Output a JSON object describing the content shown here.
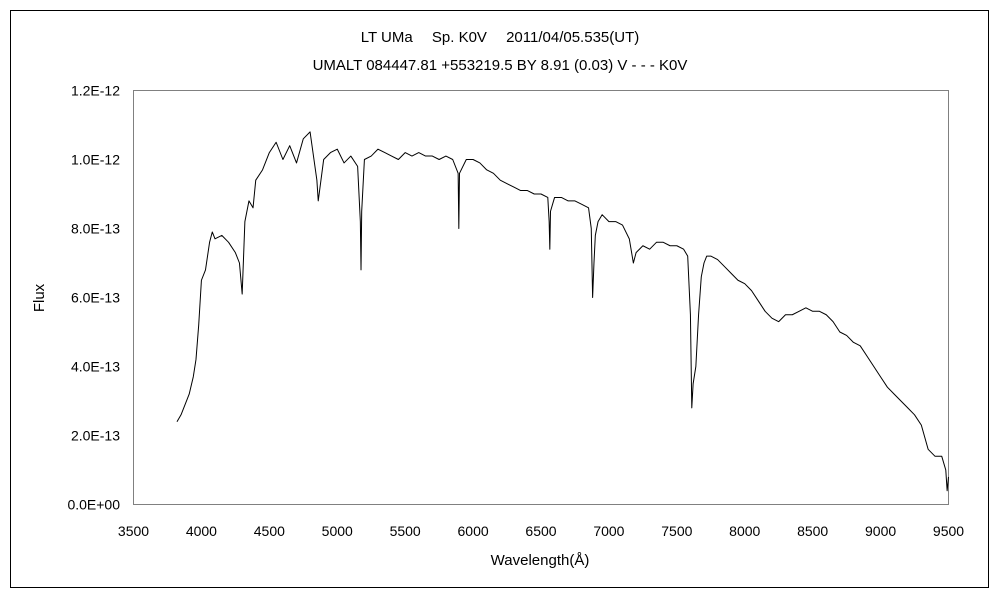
{
  "chart_data": {
    "type": "line",
    "title": "LT UMa　 Sp. K0V　 2011/04/05.535(UT)",
    "subtitle": "UMALT 084447.81 +553219.5 BY 8.91 (0.03) V - - - K0V",
    "xlabel": "Wavelength(Å)",
    "ylabel": "Flux",
    "xlim": [
      3500,
      9500
    ],
    "ylim": [
      0,
      1.2e-12
    ],
    "xticks": [
      3500,
      4000,
      4500,
      5000,
      5500,
      6000,
      6500,
      7000,
      7500,
      8000,
      8500,
      9000,
      9500
    ],
    "xtick_labels": [
      "3500",
      "4000",
      "4500",
      "5000",
      "5500",
      "6000",
      "6500",
      "7000",
      "7500",
      "8000",
      "8500",
      "9000",
      "9500"
    ],
    "yticks": [
      0,
      2e-13,
      4e-13,
      6e-13,
      8e-13,
      1e-12,
      1.2e-12
    ],
    "ytick_labels": [
      "0.0E+00",
      "2.0E-13",
      "4.0E-13",
      "6.0E-13",
      "8.0E-13",
      "1.0E-12",
      "1.2E-12"
    ],
    "grid": false,
    "legend": "none",
    "series": [
      {
        "color": "#000000",
        "x": [
          3820,
          3850,
          3880,
          3910,
          3940,
          3960,
          3980,
          4000,
          4030,
          4060,
          4080,
          4100,
          4150,
          4200,
          4250,
          4280,
          4300,
          4320,
          4350,
          4380,
          4400,
          4450,
          4500,
          4550,
          4600,
          4650,
          4700,
          4750,
          4800,
          4850,
          4860,
          4900,
          4950,
          5000,
          5050,
          5100,
          5150,
          5170,
          5175,
          5180,
          5200,
          5250,
          5300,
          5350,
          5400,
          5450,
          5500,
          5550,
          5600,
          5650,
          5700,
          5750,
          5800,
          5850,
          5890,
          5895,
          5900,
          5950,
          6000,
          6050,
          6100,
          6150,
          6200,
          6250,
          6300,
          6350,
          6400,
          6450,
          6500,
          6550,
          6560,
          6565,
          6570,
          6600,
          6650,
          6700,
          6750,
          6800,
          6850,
          6870,
          6880,
          6890,
          6900,
          6920,
          6950,
          7000,
          7050,
          7100,
          7150,
          7180,
          7200,
          7250,
          7300,
          7350,
          7400,
          7450,
          7500,
          7550,
          7580,
          7600,
          7610,
          7620,
          7640,
          7660,
          7680,
          7700,
          7720,
          7750,
          7800,
          7850,
          7900,
          7950,
          8000,
          8050,
          8100,
          8150,
          8200,
          8250,
          8300,
          8350,
          8400,
          8450,
          8500,
          8550,
          8600,
          8650,
          8700,
          8750,
          8800,
          8850,
          8900,
          8950,
          9000,
          9050,
          9100,
          9150,
          9200,
          9250,
          9300,
          9350,
          9400,
          9450,
          9480,
          9490,
          9500
        ],
        "y": [
          2.4e-13,
          2.6e-13,
          2.9e-13,
          3.2e-13,
          3.7e-13,
          4.2e-13,
          5.2e-13,
          6.5e-13,
          6.8e-13,
          7.6e-13,
          7.9e-13,
          7.7e-13,
          7.8e-13,
          7.6e-13,
          7.3e-13,
          7e-13,
          6.1e-13,
          8.2e-13,
          8.8e-13,
          8.6e-13,
          9.4e-13,
          9.7e-13,
          1.02e-12,
          1.05e-12,
          1e-12,
          1.04e-12,
          9.9e-13,
          1.06e-12,
          1.08e-12,
          9.4e-13,
          8.8e-13,
          1e-12,
          1.02e-12,
          1.03e-12,
          9.9e-13,
          1.01e-12,
          9.8e-13,
          8.2e-13,
          6.8e-13,
          8.5e-13,
          1e-12,
          1.01e-12,
          1.03e-12,
          1.02e-12,
          1.01e-12,
          1e-12,
          1.02e-12,
          1.01e-12,
          1.02e-12,
          1.01e-12,
          1.01e-12,
          1e-12,
          1.01e-12,
          1e-12,
          9.6e-13,
          8e-13,
          9.6e-13,
          1e-12,
          1e-12,
          9.9e-13,
          9.7e-13,
          9.6e-13,
          9.4e-13,
          9.3e-13,
          9.2e-13,
          9.1e-13,
          9.1e-13,
          9e-13,
          9e-13,
          8.9e-13,
          8.2e-13,
          7.4e-13,
          8.5e-13,
          8.9e-13,
          8.9e-13,
          8.8e-13,
          8.8e-13,
          8.7e-13,
          8.6e-13,
          8e-13,
          6e-13,
          7e-13,
          7.8e-13,
          8.2e-13,
          8.4e-13,
          8.2e-13,
          8.2e-13,
          8.1e-13,
          7.7e-13,
          7e-13,
          7.3e-13,
          7.5e-13,
          7.4e-13,
          7.6e-13,
          7.6e-13,
          7.5e-13,
          7.5e-13,
          7.4e-13,
          7.2e-13,
          5.5e-13,
          2.8e-13,
          3.5e-13,
          4e-13,
          5.5e-13,
          6.6e-13,
          7e-13,
          7.2e-13,
          7.2e-13,
          7.1e-13,
          6.9e-13,
          6.7e-13,
          6.5e-13,
          6.4e-13,
          6.2e-13,
          5.9e-13,
          5.6e-13,
          5.4e-13,
          5.3e-13,
          5.5e-13,
          5.5e-13,
          5.6e-13,
          5.7e-13,
          5.6e-13,
          5.6e-13,
          5.5e-13,
          5.3e-13,
          5e-13,
          4.9e-13,
          4.7e-13,
          4.6e-13,
          4.3e-13,
          4e-13,
          3.7e-13,
          3.4e-13,
          3.2e-13,
          3e-13,
          2.8e-13,
          2.6e-13,
          2.3e-13,
          1.6e-13,
          1.4e-13,
          1.4e-13,
          1e-13,
          4e-14,
          8e-14
        ]
      }
    ]
  }
}
